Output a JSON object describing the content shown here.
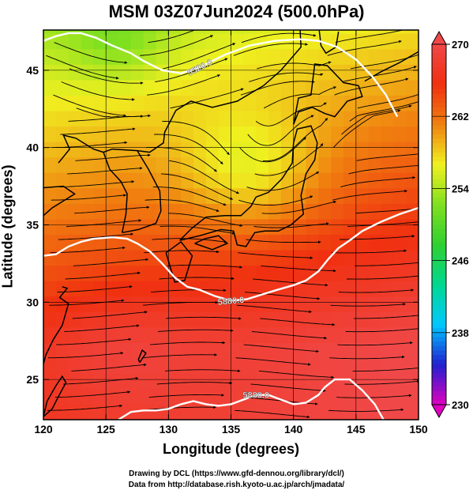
{
  "title": "MSM 03Z07Jun2024 (500.0hPa)",
  "chart_data": {
    "type": "heatmap",
    "title": "MSM 03Z07Jun2024 (500.0hPa)",
    "xlabel": "Longitude (degrees)",
    "ylabel": "Latitude  (degrees)",
    "xlim": [
      120,
      150
    ],
    "ylim": [
      22.4,
      47.6
    ],
    "x_ticks": [
      120,
      125,
      130,
      135,
      140,
      145,
      150
    ],
    "y_ticks": [
      25,
      30,
      35,
      40,
      45
    ],
    "grid": true,
    "colorbar": {
      "range": [
        230,
        270
      ],
      "ticks": [
        230,
        238,
        246,
        254,
        262,
        270
      ],
      "colors": [
        "#e000c0",
        "#2020d0",
        "#00c8ff",
        "#00d890",
        "#30d030",
        "#80e020",
        "#f0f020",
        "#f08010",
        "#f03010",
        "#f04848"
      ]
    },
    "contours": [
      {
        "label": "5520.0",
        "points": [
          [
            120.0,
            46.9
          ],
          [
            121.0,
            47.2
          ],
          [
            122.0,
            47.4
          ],
          [
            123.0,
            47.4
          ],
          [
            124.2,
            47.1
          ],
          [
            125.5,
            46.6
          ],
          [
            127.0,
            46.1
          ],
          [
            128.0,
            45.6
          ],
          [
            129.5,
            45.0
          ],
          [
            131.0,
            44.8
          ],
          [
            132.5,
            45.2
          ],
          [
            134.5,
            46.0
          ],
          [
            136.5,
            46.6
          ],
          [
            138.5,
            46.9
          ],
          [
            140.5,
            47.0
          ],
          [
            142.0,
            46.9
          ],
          [
            143.5,
            46.5
          ],
          [
            145.0,
            45.7
          ],
          [
            146.3,
            44.6
          ],
          [
            147.4,
            43.4
          ],
          [
            148.3,
            42.0
          ]
        ]
      },
      {
        "label": "5880.0",
        "points": [
          [
            120.0,
            33.0
          ],
          [
            121.0,
            33.1
          ],
          [
            122.0,
            33.6
          ],
          [
            123.0,
            33.9
          ],
          [
            124.0,
            34.1
          ],
          [
            125.5,
            34.2
          ],
          [
            126.7,
            34.1
          ],
          [
            127.5,
            33.8
          ],
          [
            128.5,
            33.3
          ],
          [
            129.5,
            32.5
          ],
          [
            130.5,
            31.6
          ],
          [
            131.5,
            31.0
          ],
          [
            132.5,
            30.8
          ],
          [
            133.7,
            30.4
          ],
          [
            135.0,
            30.1
          ],
          [
            136.3,
            30.2
          ],
          [
            137.5,
            30.5
          ],
          [
            138.7,
            30.8
          ],
          [
            140.0,
            31.1
          ],
          [
            141.0,
            31.4
          ],
          [
            142.0,
            32.0
          ],
          [
            142.8,
            32.8
          ],
          [
            143.6,
            33.5
          ],
          [
            144.5,
            34.0
          ],
          [
            145.5,
            34.6
          ],
          [
            147.0,
            35.2
          ],
          [
            148.5,
            35.7
          ],
          [
            150.0,
            36.1
          ]
        ]
      },
      {
        "label": "5880.0",
        "points": [
          [
            126.0,
            22.4
          ],
          [
            127.0,
            22.9
          ],
          [
            128.0,
            23.0
          ],
          [
            129.0,
            23.0
          ],
          [
            130.0,
            23.1
          ],
          [
            131.0,
            23.4
          ],
          [
            132.0,
            23.6
          ],
          [
            133.0,
            23.4
          ],
          [
            134.0,
            23.3
          ],
          [
            135.0,
            23.4
          ],
          [
            136.0,
            23.7
          ],
          [
            137.0,
            24.0
          ],
          [
            138.0,
            24.0
          ],
          [
            139.0,
            23.7
          ],
          [
            140.0,
            23.4
          ],
          [
            141.0,
            23.5
          ],
          [
            142.0,
            24.0
          ],
          [
            142.5,
            24.5
          ],
          [
            143.3,
            25.0
          ],
          [
            144.5,
            25.0
          ],
          [
            145.5,
            24.3
          ],
          [
            146.5,
            23.4
          ],
          [
            147.2,
            22.4
          ]
        ]
      }
    ]
  },
  "credit": {
    "line1": "Drawing by DCL (https://www.gfd-dennou.org/library/dcl/)",
    "line2": "Data from http://database.rish.kyoto-u.ac.jp/arch/jmadata/"
  }
}
